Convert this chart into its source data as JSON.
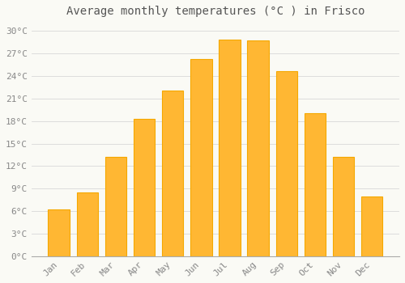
{
  "title": "Average monthly temperatures (°C ) in Frisco",
  "months": [
    "Jan",
    "Feb",
    "Mar",
    "Apr",
    "May",
    "Jun",
    "Jul",
    "Aug",
    "Sep",
    "Oct",
    "Nov",
    "Dec"
  ],
  "values": [
    6.2,
    8.5,
    13.2,
    18.3,
    22.1,
    26.3,
    28.9,
    28.7,
    24.7,
    19.1,
    13.2,
    8.0
  ],
  "bar_color": "#FFB733",
  "bar_edge_color": "#F5A800",
  "background_color": "#FAFAF5",
  "grid_color": "#D8D8D8",
  "ylim": [
    0,
    31
  ],
  "yticks": [
    0,
    3,
    6,
    9,
    12,
    15,
    18,
    21,
    24,
    27,
    30
  ],
  "ylabel_suffix": "°C",
  "title_fontsize": 10,
  "tick_fontsize": 8,
  "tick_color": "#888888",
  "font_family": "monospace",
  "bar_width": 0.75
}
